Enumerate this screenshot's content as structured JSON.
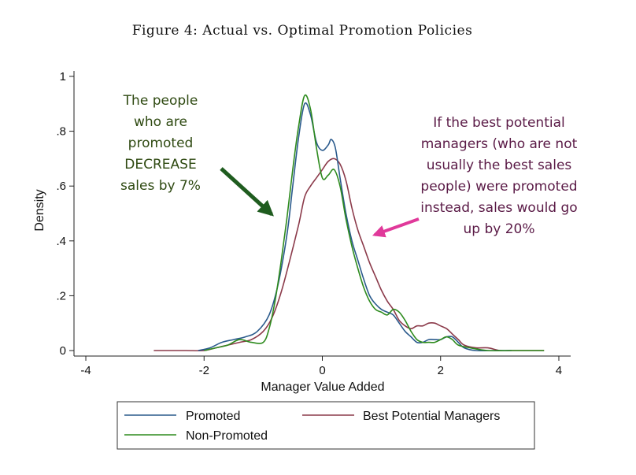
{
  "chart_data": {
    "type": "line",
    "title": "Figure 4: Actual vs. Optimal Promotion Policies",
    "xlabel": "Manager Value Added",
    "ylabel": "Density",
    "xlim": [
      -4.2,
      4.2
    ],
    "ylim": [
      -0.02,
      1.02
    ],
    "x_ticks": [
      -4,
      -2,
      0,
      2,
      4
    ],
    "x_tick_labels": [
      "-4",
      "-2",
      "0",
      "2",
      "4"
    ],
    "y_ticks": [
      0,
      0.2,
      0.4,
      0.6,
      0.8,
      1
    ],
    "y_tick_labels": [
      "0",
      ".2",
      ".4",
      ".6",
      ".8",
      "1"
    ],
    "grid": false,
    "legend_placement": "bottom",
    "series": [
      {
        "name": "Promoted",
        "color": "#2a5a8c",
        "points": [
          [
            -2.1,
            0.0
          ],
          [
            -1.9,
            0.01
          ],
          [
            -1.7,
            0.03
          ],
          [
            -1.5,
            0.04
          ],
          [
            -1.3,
            0.05
          ],
          [
            -1.1,
            0.07
          ],
          [
            -0.9,
            0.13
          ],
          [
            -0.75,
            0.24
          ],
          [
            -0.6,
            0.42
          ],
          [
            -0.5,
            0.6
          ],
          [
            -0.4,
            0.78
          ],
          [
            -0.3,
            0.9
          ],
          [
            -0.2,
            0.86
          ],
          [
            -0.1,
            0.76
          ],
          [
            0.0,
            0.73
          ],
          [
            0.1,
            0.75
          ],
          [
            0.15,
            0.77
          ],
          [
            0.22,
            0.74
          ],
          [
            0.3,
            0.63
          ],
          [
            0.4,
            0.5
          ],
          [
            0.5,
            0.4
          ],
          [
            0.6,
            0.33
          ],
          [
            0.7,
            0.26
          ],
          [
            0.8,
            0.2
          ],
          [
            0.9,
            0.17
          ],
          [
            1.0,
            0.15
          ],
          [
            1.1,
            0.14
          ],
          [
            1.2,
            0.13
          ],
          [
            1.3,
            0.1
          ],
          [
            1.4,
            0.07
          ],
          [
            1.5,
            0.05
          ],
          [
            1.6,
            0.03
          ],
          [
            1.7,
            0.03
          ],
          [
            1.8,
            0.04
          ],
          [
            1.9,
            0.04
          ],
          [
            2.0,
            0.04
          ],
          [
            2.1,
            0.05
          ],
          [
            2.2,
            0.05
          ],
          [
            2.3,
            0.03
          ],
          [
            2.4,
            0.01
          ],
          [
            2.6,
            0.0
          ],
          [
            2.9,
            0.0
          ],
          [
            3.2,
            0.0
          ]
        ]
      },
      {
        "name": "Best Potential Managers",
        "color": "#8b3a4a",
        "points": [
          [
            -2.85,
            0.0
          ],
          [
            -2.6,
            0.0
          ],
          [
            -2.3,
            0.0
          ],
          [
            -2.0,
            0.0
          ],
          [
            -1.8,
            0.01
          ],
          [
            -1.6,
            0.02
          ],
          [
            -1.4,
            0.03
          ],
          [
            -1.2,
            0.04
          ],
          [
            -1.0,
            0.07
          ],
          [
            -0.85,
            0.12
          ],
          [
            -0.7,
            0.21
          ],
          [
            -0.55,
            0.33
          ],
          [
            -0.4,
            0.46
          ],
          [
            -0.3,
            0.56
          ],
          [
            -0.2,
            0.6
          ],
          [
            -0.1,
            0.63
          ],
          [
            0.0,
            0.66
          ],
          [
            0.1,
            0.69
          ],
          [
            0.2,
            0.7
          ],
          [
            0.3,
            0.68
          ],
          [
            0.4,
            0.62
          ],
          [
            0.5,
            0.52
          ],
          [
            0.6,
            0.44
          ],
          [
            0.7,
            0.38
          ],
          [
            0.8,
            0.32
          ],
          [
            0.9,
            0.27
          ],
          [
            1.0,
            0.22
          ],
          [
            1.1,
            0.18
          ],
          [
            1.2,
            0.15
          ],
          [
            1.3,
            0.11
          ],
          [
            1.4,
            0.09
          ],
          [
            1.5,
            0.08
          ],
          [
            1.6,
            0.09
          ],
          [
            1.7,
            0.09
          ],
          [
            1.8,
            0.1
          ],
          [
            1.9,
            0.1
          ],
          [
            2.0,
            0.09
          ],
          [
            2.1,
            0.08
          ],
          [
            2.2,
            0.06
          ],
          [
            2.3,
            0.04
          ],
          [
            2.4,
            0.02
          ],
          [
            2.6,
            0.01
          ],
          [
            2.8,
            0.01
          ],
          [
            3.0,
            0.0
          ],
          [
            3.2,
            0.0
          ],
          [
            3.5,
            0.0
          ],
          [
            3.75,
            0.0
          ]
        ]
      },
      {
        "name": "Non-Promoted",
        "color": "#2e8b1e",
        "points": [
          [
            -2.0,
            0.0
          ],
          [
            -1.8,
            0.01
          ],
          [
            -1.6,
            0.02
          ],
          [
            -1.4,
            0.04
          ],
          [
            -1.2,
            0.03
          ],
          [
            -1.0,
            0.03
          ],
          [
            -0.9,
            0.08
          ],
          [
            -0.8,
            0.18
          ],
          [
            -0.7,
            0.32
          ],
          [
            -0.6,
            0.48
          ],
          [
            -0.5,
            0.66
          ],
          [
            -0.4,
            0.82
          ],
          [
            -0.3,
            0.93
          ],
          [
            -0.2,
            0.88
          ],
          [
            -0.1,
            0.74
          ],
          [
            0.0,
            0.63
          ],
          [
            0.1,
            0.64
          ],
          [
            0.2,
            0.66
          ],
          [
            0.3,
            0.6
          ],
          [
            0.4,
            0.48
          ],
          [
            0.5,
            0.38
          ],
          [
            0.6,
            0.3
          ],
          [
            0.7,
            0.23
          ],
          [
            0.8,
            0.18
          ],
          [
            0.9,
            0.15
          ],
          [
            1.0,
            0.14
          ],
          [
            1.1,
            0.13
          ],
          [
            1.2,
            0.15
          ],
          [
            1.3,
            0.14
          ],
          [
            1.4,
            0.11
          ],
          [
            1.5,
            0.07
          ],
          [
            1.6,
            0.04
          ],
          [
            1.7,
            0.03
          ],
          [
            1.8,
            0.03
          ],
          [
            1.9,
            0.03
          ],
          [
            2.0,
            0.04
          ],
          [
            2.1,
            0.05
          ],
          [
            2.2,
            0.04
          ],
          [
            2.3,
            0.02
          ],
          [
            2.5,
            0.01
          ],
          [
            2.8,
            0.0
          ],
          [
            3.2,
            0.0
          ],
          [
            3.5,
            0.0
          ],
          [
            3.75,
            0.0
          ]
        ]
      }
    ],
    "annotations": [
      {
        "id": "green-annotation",
        "lines": [
          "The people",
          "who are",
          "promoted",
          "DECREASE",
          "sales  by 7%"
        ],
        "color": "#2f4a12",
        "arrow_color": "#1f5c1f"
      },
      {
        "id": "purple-annotation",
        "lines": [
          "If the best potential",
          "managers (who are not",
          "usually the best sales",
          "people) were promoted",
          "instead, sales would go",
          "up by 20%"
        ],
        "color": "#5a1a46",
        "arrow_color": "#e0399a"
      }
    ]
  }
}
